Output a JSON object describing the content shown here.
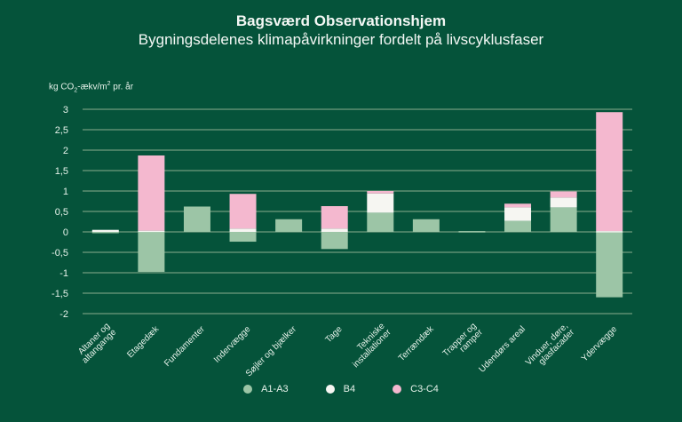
{
  "chart_data": {
    "type": "bar",
    "stacked": true,
    "title": "Bagsværd Observationshjem",
    "subtitle": "Bygningsdelenes klimapåvirkninger fordelt på livscyklusfaser",
    "ylabel": "kg CO₂-ækv/m² pr. år",
    "ylabel_parts": {
      "pre": "kg CO",
      "sub": "2",
      "mid": "-ækv/m",
      "sup": "2",
      "post": " pr. år"
    },
    "ylim": [
      -2,
      3
    ],
    "yticks": [
      3,
      2.5,
      2,
      1.5,
      1,
      0.5,
      0,
      -0.5,
      -1,
      -1.5,
      -2
    ],
    "ytick_labels": [
      "3",
      "2,5",
      "2",
      "1,5",
      "1",
      "0,5",
      "0",
      "-0,5",
      "-1",
      "-1,5",
      "-2"
    ],
    "grid": true,
    "categories": [
      "Altaner og altangange",
      "Etagedæk",
      "Fundamenter",
      "Indervægge",
      "Søjler og bjælker",
      "Tage",
      "Tekniske installationer",
      "Terrændæk",
      "Trapper og ramper",
      "Udendørs areal",
      "Vinduer, døre, glasfacader",
      "Ydervægge"
    ],
    "category_lines": [
      [
        "Altaner og",
        "altangange"
      ],
      [
        "Etagedæk"
      ],
      [
        "Fundamenter"
      ],
      [
        "Indervægge"
      ],
      [
        "Søjler og bjælker"
      ],
      [
        "Tage"
      ],
      [
        "Tekniske",
        "installationer"
      ],
      [
        "Terrændæk"
      ],
      [
        "Trapper og",
        "ramper"
      ],
      [
        "Udendørs areal"
      ],
      [
        "Vinduer, døre,",
        "glasfacader"
      ],
      [
        "Ydervægge"
      ]
    ],
    "series": [
      {
        "name": "A1-A3",
        "color": "#9cc5a6",
        "values": [
          -0.02,
          -0.98,
          0.62,
          -0.24,
          0.31,
          -0.42,
          0.47,
          0.31,
          0.02,
          0.27,
          0.6,
          -1.6
        ]
      },
      {
        "name": "B4",
        "color": "#f6f6f2",
        "values": [
          0.05,
          0.03,
          0.0,
          0.08,
          0.0,
          0.08,
          0.47,
          0.0,
          0.0,
          0.33,
          0.24,
          0.02
        ]
      },
      {
        "name": "C3-C4",
        "color": "#f4b8cf",
        "values": [
          0.0,
          1.84,
          0.0,
          0.85,
          0.0,
          0.55,
          0.06,
          0.0,
          0.0,
          0.09,
          0.15,
          2.91
        ]
      }
    ],
    "legend_position": "bottom"
  }
}
